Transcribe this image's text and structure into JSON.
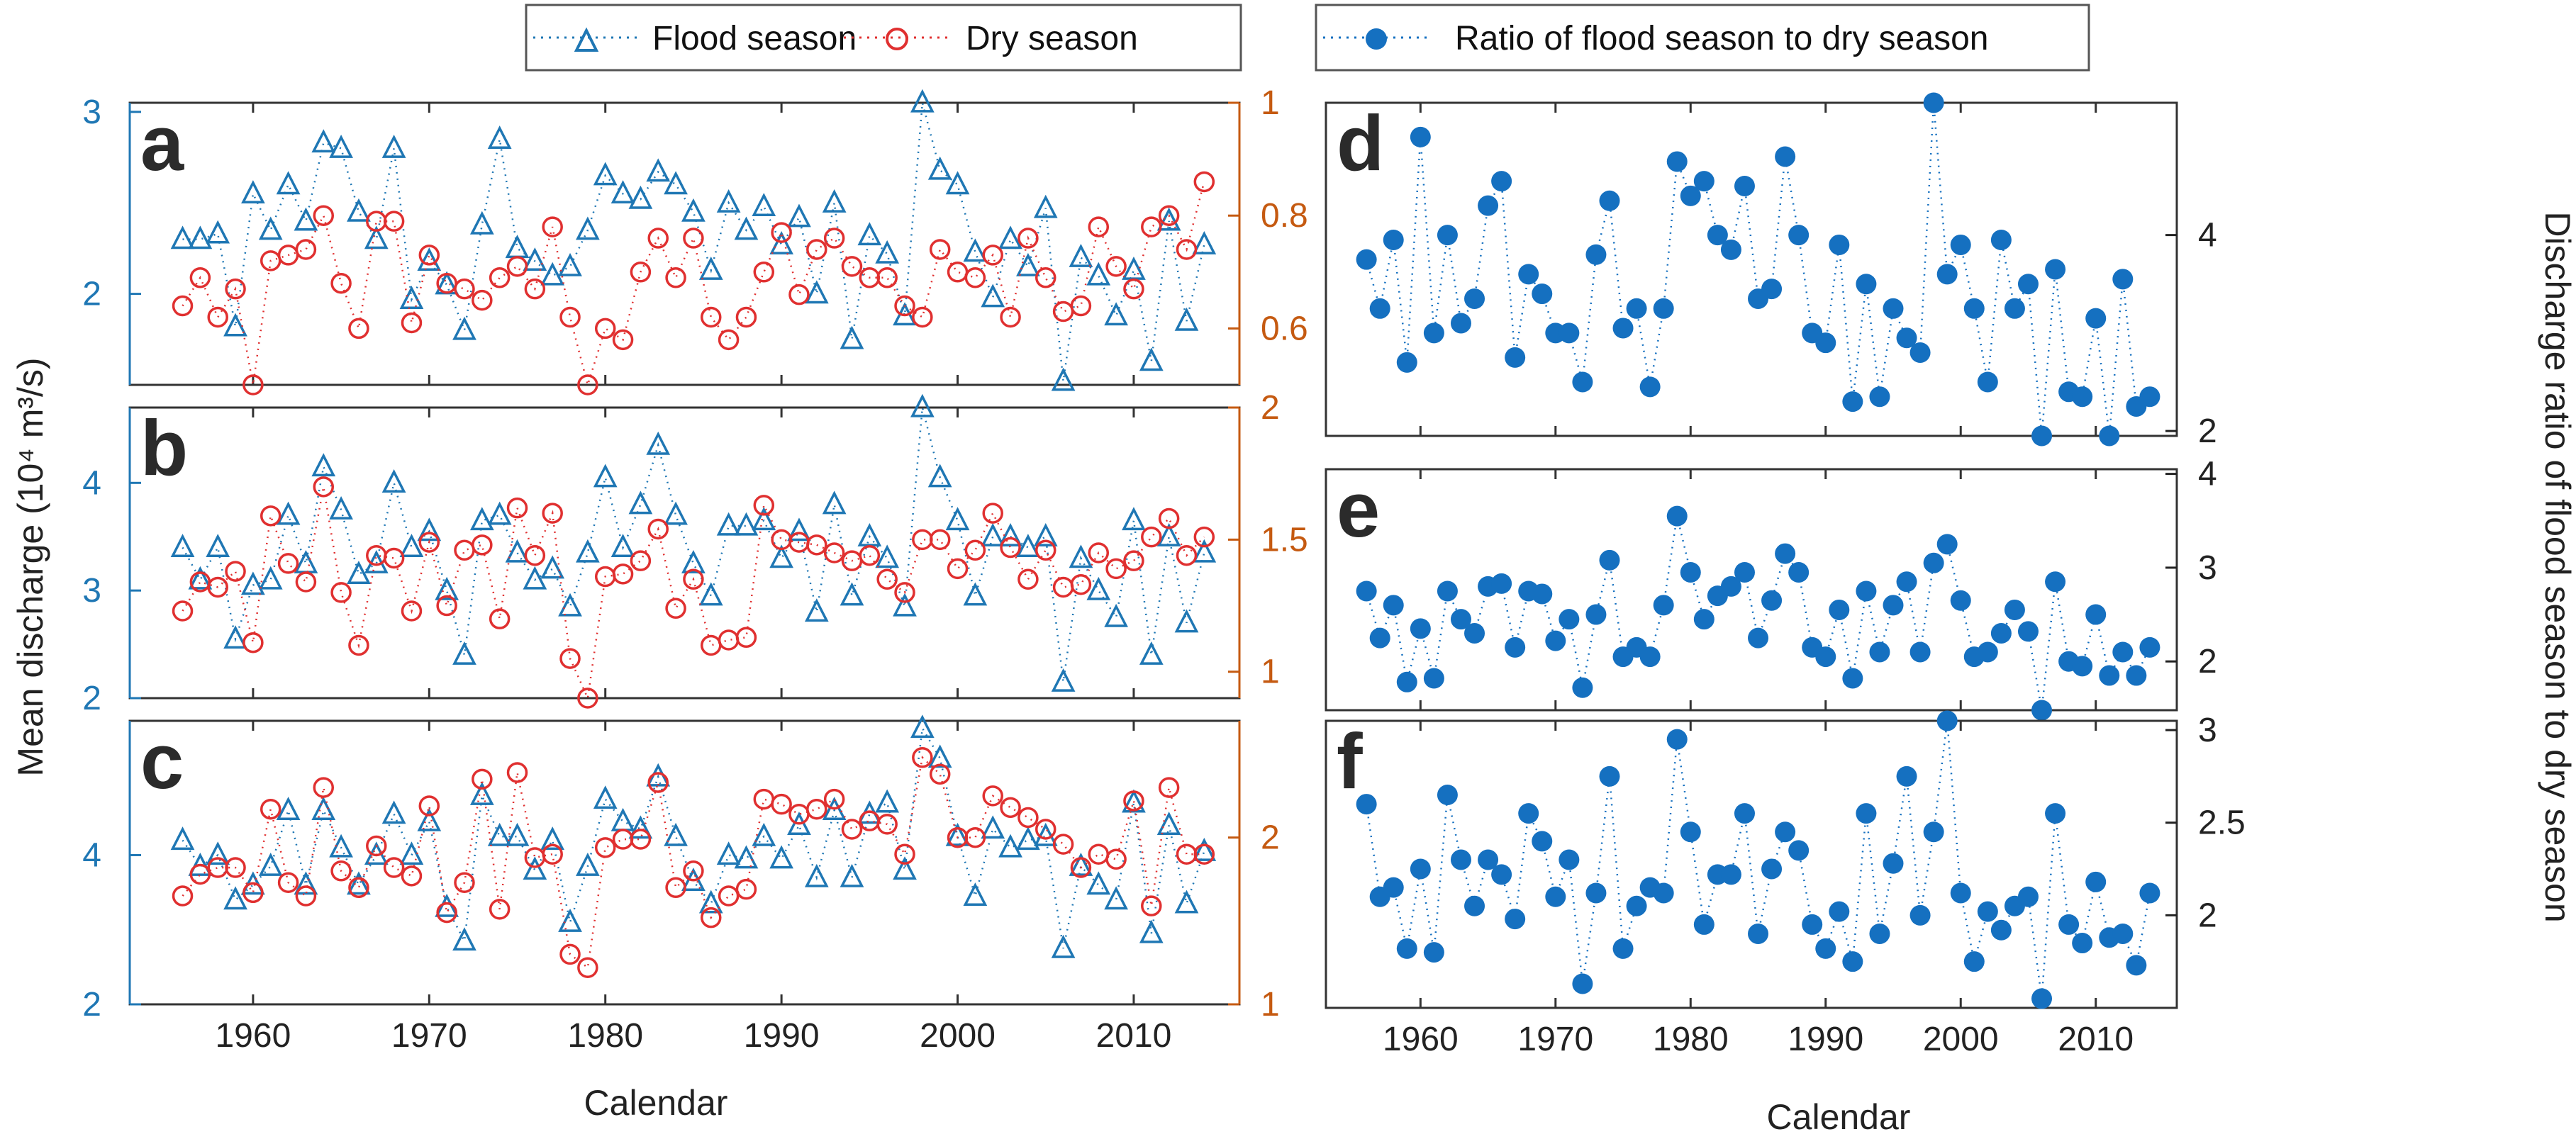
{
  "colors": {
    "flood": "#1f77b4",
    "dry": "#e03030",
    "ratio": "#1570c0",
    "right_axis": "#c55a11",
    "text": "#222222"
  },
  "legend_left": {
    "flood": "Flood season",
    "dry": "Dry season"
  },
  "legend_right": {
    "ratio": "Ratio of flood season to dry season"
  },
  "axis_labels": {
    "left_y": "Mean discharge  (10⁴ m³/s)",
    "x_left": "Calendar",
    "x_right": "Calendar",
    "right_y": "Discharge ratio of flood season to dry season"
  },
  "chart_data": [
    {
      "panel": "a",
      "type": "line",
      "xlim": [
        1953,
        2016
      ],
      "ylim": [
        1.5,
        3.05
      ],
      "y2lim": [
        0.5,
        1.0
      ],
      "yticks": [
        "2",
        "3"
      ],
      "y2ticks": [
        "0.6",
        "0.8",
        "1"
      ],
      "x": [
        1956,
        1957,
        1958,
        1959,
        1960,
        1961,
        1962,
        1963,
        1964,
        1965,
        1966,
        1967,
        1968,
        1969,
        1970,
        1971,
        1972,
        1973,
        1974,
        1975,
        1976,
        1977,
        1978,
        1979,
        1980,
        1981,
        1982,
        1983,
        1984,
        1985,
        1986,
        1987,
        1988,
        1989,
        1990,
        1991,
        1992,
        1993,
        1994,
        1995,
        1996,
        1997,
        1998,
        1999,
        2000,
        2001,
        2002,
        2003,
        2004,
        2005,
        2006,
        2007,
        2008,
        2009,
        2010,
        2011,
        2012,
        2013,
        2014
      ],
      "series": [
        {
          "name": "Flood season",
          "axis": "left",
          "values": [
            2.3,
            2.3,
            2.33,
            1.82,
            2.55,
            2.35,
            2.6,
            2.4,
            2.83,
            2.8,
            2.45,
            2.3,
            2.8,
            1.97,
            2.18,
            2.05,
            1.8,
            2.38,
            2.85,
            2.25,
            2.18,
            2.1,
            2.15,
            2.35,
            2.65,
            2.55,
            2.52,
            2.67,
            2.6,
            2.45,
            2.13,
            2.5,
            2.35,
            2.48,
            2.27,
            2.42,
            2.0,
            2.5,
            1.75,
            2.32,
            2.22,
            1.88,
            3.05,
            2.68,
            2.6,
            2.23,
            1.98,
            2.3,
            2.15,
            2.47,
            1.52,
            2.2,
            2.1,
            1.88,
            2.13,
            1.63,
            2.4,
            1.85,
            2.27
          ]
        },
        {
          "name": "Dry season",
          "axis": "right",
          "values": [
            0.64,
            0.69,
            0.62,
            0.67,
            0.5,
            0.72,
            0.73,
            0.74,
            0.8,
            0.68,
            0.6,
            0.79,
            0.79,
            0.61,
            0.73,
            0.68,
            0.67,
            0.65,
            0.69,
            0.71,
            0.67,
            0.78,
            0.62,
            0.5,
            0.6,
            0.58,
            0.7,
            0.76,
            0.69,
            0.76,
            0.62,
            0.58,
            0.62,
            0.7,
            0.77,
            0.66,
            0.74,
            0.76,
            0.71,
            0.69,
            0.69,
            0.64,
            0.62,
            0.74,
            0.7,
            0.69,
            0.73,
            0.62,
            0.76,
            0.69,
            0.63,
            0.64,
            0.78,
            0.71,
            0.67,
            0.78,
            0.8,
            0.74,
            0.86
          ]
        }
      ]
    },
    {
      "panel": "b",
      "type": "line",
      "xlim": [
        1953,
        2016
      ],
      "ylim": [
        2.0,
        4.7
      ],
      "y2lim": [
        0.9,
        2.0
      ],
      "yticks": [
        "2",
        "3",
        "4"
      ],
      "y2ticks": [
        "1",
        "1.5",
        "2"
      ],
      "x": [
        1956,
        1957,
        1958,
        1959,
        1960,
        1961,
        1962,
        1963,
        1964,
        1965,
        1966,
        1967,
        1968,
        1969,
        1970,
        1971,
        1972,
        1973,
        1974,
        1975,
        1976,
        1977,
        1978,
        1979,
        1980,
        1981,
        1982,
        1983,
        1984,
        1985,
        1986,
        1987,
        1988,
        1989,
        1990,
        1991,
        1992,
        1993,
        1994,
        1995,
        1996,
        1997,
        1998,
        1999,
        2000,
        2001,
        2002,
        2003,
        2004,
        2005,
        2006,
        2007,
        2008,
        2009,
        2010,
        2011,
        2012,
        2013,
        2014
      ],
      "series": [
        {
          "name": "Flood season",
          "axis": "left",
          "values": [
            3.4,
            3.1,
            3.4,
            2.55,
            3.05,
            3.1,
            3.7,
            3.25,
            4.15,
            3.75,
            3.15,
            3.25,
            4.0,
            3.4,
            3.55,
            3.0,
            2.4,
            3.65,
            3.7,
            3.35,
            3.1,
            3.2,
            2.85,
            3.35,
            4.05,
            3.4,
            3.8,
            4.35,
            3.7,
            3.25,
            2.95,
            3.6,
            3.6,
            3.65,
            3.3,
            3.55,
            2.8,
            3.8,
            2.95,
            3.5,
            3.3,
            2.85,
            4.7,
            4.05,
            3.65,
            2.95,
            3.5,
            3.5,
            3.4,
            3.5,
            2.15,
            3.3,
            3.0,
            2.75,
            3.65,
            2.4,
            3.5,
            2.7,
            3.35
          ]
        },
        {
          "name": "Dry season",
          "axis": "right",
          "values": [
            1.23,
            1.34,
            1.32,
            1.38,
            1.11,
            1.59,
            1.41,
            1.34,
            1.7,
            1.3,
            1.1,
            1.44,
            1.43,
            1.23,
            1.49,
            1.25,
            1.46,
            1.48,
            1.2,
            1.62,
            1.44,
            1.6,
            1.05,
            0.9,
            1.36,
            1.37,
            1.42,
            1.54,
            1.24,
            1.35,
            1.1,
            1.12,
            1.13,
            1.63,
            1.5,
            1.49,
            1.48,
            1.45,
            1.42,
            1.44,
            1.35,
            1.3,
            1.5,
            1.5,
            1.39,
            1.46,
            1.6,
            1.47,
            1.35,
            1.46,
            1.32,
            1.33,
            1.45,
            1.39,
            1.42,
            1.51,
            1.58,
            1.44,
            1.51
          ]
        }
      ]
    },
    {
      "panel": "c",
      "type": "line",
      "xlim": [
        1953,
        2016
      ],
      "ylim": [
        2.0,
        5.8
      ],
      "y2lim": [
        1.0,
        2.7
      ],
      "yticks": [
        "2",
        "4"
      ],
      "y2ticks": [
        "1",
        "2"
      ],
      "x": [
        1956,
        1957,
        1958,
        1959,
        1960,
        1961,
        1962,
        1963,
        1964,
        1965,
        1966,
        1967,
        1968,
        1969,
        1970,
        1971,
        1972,
        1973,
        1974,
        1975,
        1976,
        1977,
        1978,
        1979,
        1980,
        1981,
        1982,
        1983,
        1984,
        1985,
        1986,
        1987,
        1988,
        1989,
        1990,
        1991,
        1992,
        1993,
        1994,
        1995,
        1996,
        1997,
        1998,
        1999,
        2000,
        2001,
        2002,
        2003,
        2004,
        2005,
        2006,
        2007,
        2008,
        2009,
        2010,
        2011,
        2012,
        2013,
        2014
      ],
      "series": [
        {
          "name": "Flood season",
          "axis": "left",
          "values": [
            4.2,
            3.85,
            4.0,
            3.4,
            3.6,
            3.85,
            4.6,
            3.6,
            4.6,
            4.1,
            3.6,
            4.0,
            4.55,
            4.0,
            4.45,
            3.3,
            2.85,
            4.8,
            4.25,
            4.25,
            3.8,
            4.2,
            3.1,
            3.85,
            4.75,
            4.45,
            4.35,
            5.05,
            4.25,
            3.65,
            3.35,
            4.0,
            3.95,
            4.25,
            3.95,
            4.4,
            3.7,
            4.6,
            3.7,
            4.55,
            4.7,
            3.8,
            5.7,
            5.3,
            4.25,
            3.45,
            4.35,
            4.1,
            4.2,
            4.25,
            2.75,
            3.85,
            3.6,
            3.4,
            4.7,
            2.95,
            4.4,
            3.35,
            4.05
          ]
        },
        {
          "name": "Dry season",
          "axis": "right",
          "values": [
            1.65,
            1.78,
            1.82,
            1.82,
            1.67,
            2.17,
            1.73,
            1.65,
            2.3,
            1.8,
            1.7,
            1.95,
            1.82,
            1.77,
            2.19,
            1.55,
            1.73,
            2.35,
            1.57,
            2.39,
            1.88,
            1.9,
            1.3,
            1.22,
            1.94,
            1.99,
            1.99,
            2.33,
            1.7,
            1.8,
            1.52,
            1.65,
            1.69,
            2.23,
            2.2,
            2.14,
            2.17,
            2.23,
            2.05,
            2.1,
            2.08,
            1.9,
            2.48,
            2.38,
            2.0,
            2.0,
            2.25,
            2.18,
            2.12,
            2.05,
            1.96,
            1.82,
            1.9,
            1.87,
            2.22,
            1.59,
            2.3,
            1.9,
            1.9
          ]
        }
      ]
    },
    {
      "panel": "d",
      "type": "scatter",
      "xlim": [
        1953,
        2016
      ],
      "ylim": [
        1.95,
        5.35
      ],
      "y2ticks": [
        "2",
        "4"
      ],
      "x": [
        1956,
        1957,
        1958,
        1959,
        1960,
        1961,
        1962,
        1963,
        1964,
        1965,
        1966,
        1967,
        1968,
        1969,
        1970,
        1971,
        1972,
        1973,
        1974,
        1975,
        1976,
        1977,
        1978,
        1979,
        1980,
        1981,
        1982,
        1983,
        1984,
        1985,
        1986,
        1987,
        1988,
        1989,
        1990,
        1991,
        1992,
        1993,
        1994,
        1995,
        1996,
        1997,
        1998,
        1999,
        2000,
        2001,
        2002,
        2003,
        2004,
        2005,
        2006,
        2007,
        2008,
        2009,
        2010,
        2011,
        2012,
        2013,
        2014
      ],
      "series": [
        {
          "name": "Ratio of flood season to dry season",
          "axis": "right",
          "values": [
            3.75,
            3.25,
            3.95,
            2.7,
            5.0,
            3.0,
            4.0,
            3.1,
            3.35,
            4.3,
            4.55,
            2.75,
            3.6,
            3.4,
            3.0,
            3.0,
            2.5,
            3.8,
            4.35,
            3.05,
            3.25,
            2.45,
            3.25,
            4.75,
            4.4,
            4.55,
            4.0,
            3.85,
            4.5,
            3.35,
            3.45,
            4.8,
            4.0,
            3.0,
            2.9,
            3.9,
            2.3,
            3.5,
            2.35,
            3.25,
            2.95,
            2.8,
            5.35,
            3.6,
            3.9,
            3.25,
            2.5,
            3.95,
            3.25,
            3.5,
            1.95,
            3.65,
            2.4,
            2.35,
            3.15,
            1.95,
            3.55,
            2.25,
            2.35
          ]
        }
      ]
    },
    {
      "panel": "e",
      "type": "scatter",
      "xlim": [
        1953,
        2016
      ],
      "ylim": [
        1.48,
        4.05
      ],
      "y2ticks": [
        "2",
        "3",
        "4"
      ],
      "x": [
        1956,
        1957,
        1958,
        1959,
        1960,
        1961,
        1962,
        1963,
        1964,
        1965,
        1966,
        1967,
        1968,
        1969,
        1970,
        1971,
        1972,
        1973,
        1974,
        1975,
        1976,
        1977,
        1978,
        1979,
        1980,
        1981,
        1982,
        1983,
        1984,
        1985,
        1986,
        1987,
        1988,
        1989,
        1990,
        1991,
        1992,
        1993,
        1994,
        1995,
        1996,
        1997,
        1998,
        1999,
        2000,
        2001,
        2002,
        2003,
        2004,
        2005,
        2006,
        2007,
        2008,
        2009,
        2010,
        2011,
        2012,
        2013,
        2014
      ],
      "series": [
        {
          "name": "Ratio of flood season to dry season",
          "axis": "right",
          "values": [
            2.75,
            2.25,
            2.6,
            1.78,
            2.35,
            1.82,
            2.75,
            2.45,
            2.3,
            2.8,
            2.83,
            2.15,
            2.75,
            2.72,
            2.22,
            2.45,
            1.72,
            2.5,
            3.08,
            2.05,
            2.15,
            2.05,
            2.6,
            3.55,
            2.95,
            2.45,
            2.7,
            2.8,
            2.95,
            2.25,
            2.65,
            3.15,
            2.95,
            2.15,
            2.05,
            2.55,
            1.82,
            2.75,
            2.1,
            2.6,
            2.85,
            2.1,
            3.05,
            3.25,
            2.65,
            2.05,
            2.1,
            2.3,
            2.55,
            2.32,
            1.48,
            2.85,
            2.0,
            1.95,
            2.5,
            1.85,
            2.1,
            1.85,
            2.15
          ]
        }
      ]
    },
    {
      "panel": "f",
      "type": "scatter",
      "xlim": [
        1953,
        2016
      ],
      "ylim": [
        1.5,
        3.05
      ],
      "y2ticks": [
        "2",
        "2.5",
        "3"
      ],
      "x": [
        1956,
        1957,
        1958,
        1959,
        1960,
        1961,
        1962,
        1963,
        1964,
        1965,
        1966,
        1967,
        1968,
        1969,
        1970,
        1971,
        1972,
        1973,
        1974,
        1975,
        1976,
        1977,
        1978,
        1979,
        1980,
        1981,
        1982,
        1983,
        1984,
        1985,
        1986,
        1987,
        1988,
        1989,
        1990,
        1991,
        1992,
        1993,
        1994,
        1995,
        1996,
        1997,
        1998,
        1999,
        2000,
        2001,
        2002,
        2003,
        2004,
        2005,
        2006,
        2007,
        2008,
        2009,
        2010,
        2011,
        2012,
        2013,
        2014
      ],
      "series": [
        {
          "name": "Ratio of flood season to dry season",
          "axis": "right",
          "values": [
            2.6,
            2.1,
            2.15,
            1.82,
            2.25,
            1.8,
            2.65,
            2.3,
            2.05,
            2.3,
            2.22,
            1.98,
            2.55,
            2.4,
            2.1,
            2.3,
            1.63,
            2.12,
            2.75,
            1.82,
            2.05,
            2.15,
            2.12,
            2.95,
            2.45,
            1.95,
            2.22,
            2.22,
            2.55,
            1.9,
            2.25,
            2.45,
            2.35,
            1.95,
            1.82,
            2.02,
            1.75,
            2.55,
            1.9,
            2.28,
            2.75,
            2.0,
            2.45,
            3.05,
            2.12,
            1.75,
            2.02,
            1.92,
            2.05,
            2.1,
            1.55,
            2.55,
            1.95,
            1.85,
            2.18,
            1.88,
            1.9,
            1.73,
            2.12
          ]
        }
      ]
    }
  ],
  "x_axis": {
    "ticks": [
      1960,
      1970,
      1980,
      1990,
      2000,
      2010
    ]
  }
}
